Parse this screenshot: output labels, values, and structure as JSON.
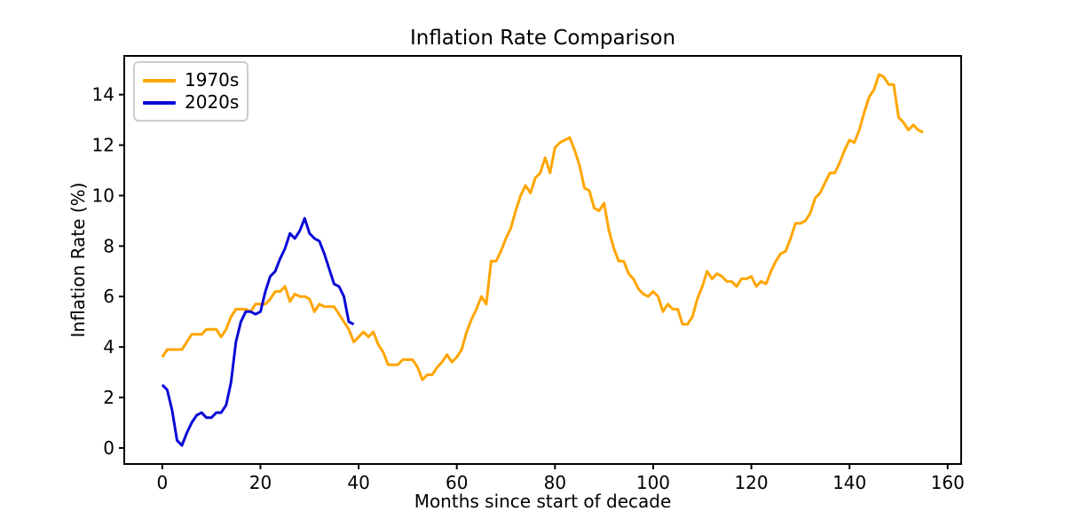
{
  "window": {
    "background": "#ffffff"
  },
  "chart_data": {
    "type": "line",
    "title": "Inflation Rate Comparison",
    "xlabel": "Months since start of decade",
    "ylabel": "Inflation Rate (%)",
    "grid": false,
    "legend_position": "upper-left",
    "xlim": [
      -7.75,
      162.75
    ],
    "ylim": [
      -0.635,
      15.535
    ],
    "xticks": [
      0,
      20,
      40,
      60,
      80,
      100,
      120,
      140,
      160
    ],
    "yticks": [
      0,
      2,
      4,
      6,
      8,
      10,
      12,
      14
    ],
    "series": [
      {
        "name": "1970s",
        "color": "#ffa500",
        "x_start": 0,
        "x_step": 1,
        "values": [
          3.6,
          3.9,
          3.9,
          3.9,
          3.9,
          4.2,
          4.5,
          4.5,
          4.5,
          4.7,
          4.7,
          4.7,
          4.4,
          4.7,
          5.2,
          5.5,
          5.5,
          5.5,
          5.4,
          5.7,
          5.7,
          5.7,
          5.9,
          6.2,
          6.2,
          6.4,
          5.8,
          6.1,
          6.0,
          6.0,
          5.9,
          5.4,
          5.7,
          5.6,
          5.6,
          5.6,
          5.3,
          5.0,
          4.7,
          4.2,
          4.4,
          4.6,
          4.4,
          4.6,
          4.1,
          3.8,
          3.3,
          3.3,
          3.3,
          3.5,
          3.5,
          3.5,
          3.2,
          2.7,
          2.9,
          2.9,
          3.2,
          3.4,
          3.7,
          3.4,
          3.6,
          3.9,
          4.6,
          5.1,
          5.5,
          6.0,
          5.7,
          7.4,
          7.4,
          7.8,
          8.3,
          8.7,
          9.4,
          10.0,
          10.4,
          10.1,
          10.7,
          10.9,
          11.5,
          10.9,
          11.9,
          12.1,
          12.2,
          12.3,
          11.8,
          11.2,
          10.3,
          10.2,
          9.5,
          9.4,
          9.7,
          8.6,
          7.9,
          7.4,
          7.4,
          6.9,
          6.7,
          6.3,
          6.1,
          6.0,
          6.2,
          6.0,
          5.4,
          5.7,
          5.5,
          5.5,
          4.9,
          4.9,
          5.2,
          5.9,
          6.4,
          7.0,
          6.7,
          6.9,
          6.8,
          6.6,
          6.6,
          6.4,
          6.7,
          6.7,
          6.8,
          6.4,
          6.6,
          6.5,
          7.0,
          7.4,
          7.7,
          7.8,
          8.3,
          8.9,
          8.9,
          9.0,
          9.3,
          9.9,
          10.1,
          10.5,
          10.9,
          10.9,
          11.3,
          11.8,
          12.2,
          12.1,
          12.6,
          13.3,
          13.9,
          14.2,
          14.8,
          14.7,
          14.4,
          14.4,
          13.1,
          12.9,
          12.6,
          12.8,
          12.6,
          12.5
        ]
      },
      {
        "name": "2020s",
        "color": "#0a0ad8",
        "x_start": 0,
        "x_step": 1,
        "values": [
          2.5,
          2.3,
          1.5,
          0.3,
          0.1,
          0.6,
          1.0,
          1.3,
          1.4,
          1.2,
          1.2,
          1.4,
          1.4,
          1.7,
          2.6,
          4.2,
          5.0,
          5.4,
          5.4,
          5.3,
          5.4,
          6.2,
          6.8,
          7.0,
          7.5,
          7.9,
          8.5,
          8.3,
          8.6,
          9.1,
          8.5,
          8.3,
          8.2,
          7.7,
          7.1,
          6.5,
          6.4,
          6.0,
          5.0,
          4.9
        ]
      }
    ]
  },
  "legend": {
    "items": [
      {
        "label": "1970s",
        "color": "#ffa500"
      },
      {
        "label": "2020s",
        "color": "#0a0ad8"
      }
    ]
  },
  "style": {
    "spine_color": "#000000",
    "tick_color": "#000000",
    "line_width": 3
  }
}
